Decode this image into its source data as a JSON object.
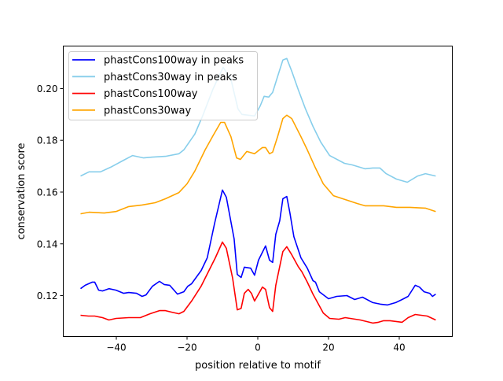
{
  "chart_data": {
    "type": "line",
    "title": "",
    "xlabel": "position relative to motif",
    "ylabel": "conservation score",
    "xlim": [
      -55,
      55
    ],
    "ylim": [
      0.1042,
      0.2164
    ],
    "xticks": [
      -40,
      -20,
      0,
      20,
      40
    ],
    "xtick_labels": [
      "−40",
      "−20",
      "0",
      "20",
      "40"
    ],
    "yticks": [
      0.12,
      0.14,
      0.16,
      0.18,
      0.2
    ],
    "ytick_labels": [
      "0.12",
      "0.14",
      "0.16",
      "0.18",
      "0.20"
    ],
    "grid": false,
    "legend_position": "top-left",
    "series": [
      {
        "name": "phastCons100way in peaks",
        "color": "#0000ff",
        "points": [
          [
            -50.1,
            0.1227
          ],
          [
            -48.8,
            0.124
          ],
          [
            -46.8,
            0.1252
          ],
          [
            -46.1,
            0.1252
          ],
          [
            -45.0,
            0.1221
          ],
          [
            -43.9,
            0.1218
          ],
          [
            -42.1,
            0.1227
          ],
          [
            -40.1,
            0.1221
          ],
          [
            -37.9,
            0.1209
          ],
          [
            -36.5,
            0.1212
          ],
          [
            -34.3,
            0.1209
          ],
          [
            -32.7,
            0.1197
          ],
          [
            -31.6,
            0.1203
          ],
          [
            -29.8,
            0.1236
          ],
          [
            -27.8,
            0.1255
          ],
          [
            -26.5,
            0.1243
          ],
          [
            -24.9,
            0.124
          ],
          [
            -22.7,
            0.1206
          ],
          [
            -20.9,
            0.1215
          ],
          [
            -19.8,
            0.1236
          ],
          [
            -18.7,
            0.1246
          ],
          [
            -16.0,
            0.1297
          ],
          [
            -14.3,
            0.1346
          ],
          [
            -12.2,
            0.148
          ],
          [
            -10.9,
            0.1556
          ],
          [
            -10.0,
            0.1608
          ],
          [
            -8.9,
            0.158
          ],
          [
            -6.7,
            0.1419
          ],
          [
            -5.8,
            0.1282
          ],
          [
            -4.7,
            0.127
          ],
          [
            -3.8,
            0.131
          ],
          [
            -2.0,
            0.1306
          ],
          [
            -0.9,
            0.1279
          ],
          [
            0.2,
            0.1337
          ],
          [
            2.2,
            0.1392
          ],
          [
            3.3,
            0.1337
          ],
          [
            4.2,
            0.1328
          ],
          [
            5.1,
            0.1437
          ],
          [
            6.2,
            0.1489
          ],
          [
            7.1,
            0.1574
          ],
          [
            8.2,
            0.1583
          ],
          [
            9.1,
            0.1519
          ],
          [
            10.2,
            0.1428
          ],
          [
            12.2,
            0.1346
          ],
          [
            14.0,
            0.1306
          ],
          [
            15.6,
            0.1258
          ],
          [
            16.3,
            0.1252
          ],
          [
            17.4,
            0.1215
          ],
          [
            20.0,
            0.1188
          ],
          [
            22.3,
            0.1197
          ],
          [
            25.2,
            0.12
          ],
          [
            27.4,
            0.1185
          ],
          [
            29.6,
            0.1194
          ],
          [
            32.5,
            0.1173
          ],
          [
            34.7,
            0.1167
          ],
          [
            36.7,
            0.1164
          ],
          [
            39.0,
            0.1173
          ],
          [
            40.8,
            0.1185
          ],
          [
            42.5,
            0.1197
          ],
          [
            44.5,
            0.124
          ],
          [
            45.7,
            0.1233
          ],
          [
            47.0,
            0.1215
          ],
          [
            48.6,
            0.1209
          ],
          [
            49.4,
            0.1197
          ],
          [
            50.3,
            0.1206
          ]
        ]
      },
      {
        "name": "phastCons30way in peaks",
        "color": "#87ceeb",
        "points": [
          [
            -50.1,
            0.1662
          ],
          [
            -47.7,
            0.1678
          ],
          [
            -44.5,
            0.1678
          ],
          [
            -41.6,
            0.1696
          ],
          [
            -37.9,
            0.1723
          ],
          [
            -35.4,
            0.1741
          ],
          [
            -32.3,
            0.1732
          ],
          [
            -29.8,
            0.1735
          ],
          [
            -26.1,
            0.1738
          ],
          [
            -22.3,
            0.1748
          ],
          [
            -20.9,
            0.1763
          ],
          [
            -17.8,
            0.1824
          ],
          [
            -15.6,
            0.1894
          ],
          [
            -12.7,
            0.1997
          ],
          [
            -9.8,
            0.2082
          ],
          [
            -7.6,
            0.2036
          ],
          [
            -5.6,
            0.1921
          ],
          [
            -4.5,
            0.19
          ],
          [
            -0.9,
            0.1894
          ],
          [
            0.7,
            0.1933
          ],
          [
            1.8,
            0.197
          ],
          [
            3.1,
            0.1967
          ],
          [
            4.2,
            0.1985
          ],
          [
            5.6,
            0.2046
          ],
          [
            7.1,
            0.211
          ],
          [
            8.2,
            0.2116
          ],
          [
            9.6,
            0.2067
          ],
          [
            11.4,
            0.1997
          ],
          [
            13.4,
            0.1924
          ],
          [
            15.6,
            0.1854
          ],
          [
            17.8,
            0.1793
          ],
          [
            20.3,
            0.1741
          ],
          [
            24.5,
            0.1711
          ],
          [
            26.7,
            0.1705
          ],
          [
            30.3,
            0.169
          ],
          [
            32.5,
            0.1693
          ],
          [
            34.5,
            0.1693
          ],
          [
            36.3,
            0.1671
          ],
          [
            39.2,
            0.165
          ],
          [
            42.3,
            0.1638
          ],
          [
            45.2,
            0.1662
          ],
          [
            47.4,
            0.1671
          ],
          [
            50.3,
            0.1662
          ]
        ]
      },
      {
        "name": "phastCons100way",
        "color": "#ff0000",
        "points": [
          [
            -50.1,
            0.1124
          ],
          [
            -47.9,
            0.1121
          ],
          [
            -46.1,
            0.1121
          ],
          [
            -43.9,
            0.1115
          ],
          [
            -42.1,
            0.1106
          ],
          [
            -40.1,
            0.1112
          ],
          [
            -36.5,
            0.1115
          ],
          [
            -33.2,
            0.1115
          ],
          [
            -30.5,
            0.113
          ],
          [
            -27.8,
            0.1142
          ],
          [
            -26.1,
            0.1142
          ],
          [
            -24.3,
            0.1136
          ],
          [
            -22.3,
            0.113
          ],
          [
            -20.9,
            0.1139
          ],
          [
            -18.7,
            0.1179
          ],
          [
            -16.0,
            0.1237
          ],
          [
            -13.8,
            0.1297
          ],
          [
            -12.0,
            0.1346
          ],
          [
            -10.0,
            0.1407
          ],
          [
            -8.9,
            0.1383
          ],
          [
            -7.1,
            0.1267
          ],
          [
            -5.8,
            0.1145
          ],
          [
            -4.7,
            0.1151
          ],
          [
            -3.8,
            0.1209
          ],
          [
            -2.7,
            0.1224
          ],
          [
            -1.8,
            0.1209
          ],
          [
            -0.9,
            0.1179
          ],
          [
            1.3,
            0.1233
          ],
          [
            2.2,
            0.1224
          ],
          [
            3.3,
            0.1154
          ],
          [
            4.2,
            0.1139
          ],
          [
            5.1,
            0.124
          ],
          [
            7.1,
            0.137
          ],
          [
            8.2,
            0.1389
          ],
          [
            9.6,
            0.1358
          ],
          [
            11.4,
            0.1313
          ],
          [
            12.5,
            0.1291
          ],
          [
            14.0,
            0.1252
          ],
          [
            15.6,
            0.1206
          ],
          [
            18.5,
            0.1133
          ],
          [
            20.3,
            0.1112
          ],
          [
            22.9,
            0.1109
          ],
          [
            24.7,
            0.1115
          ],
          [
            29.0,
            0.1106
          ],
          [
            30.7,
            0.11
          ],
          [
            32.5,
            0.1094
          ],
          [
            34.1,
            0.1097
          ],
          [
            35.6,
            0.1103
          ],
          [
            37.4,
            0.1103
          ],
          [
            40.8,
            0.1097
          ],
          [
            42.5,
            0.1115
          ],
          [
            44.5,
            0.1127
          ],
          [
            47.9,
            0.1121
          ],
          [
            50.3,
            0.1106
          ]
        ]
      },
      {
        "name": "phastCons30way",
        "color": "#ffa500",
        "points": [
          [
            -50.1,
            0.1516
          ],
          [
            -47.7,
            0.1522
          ],
          [
            -43.4,
            0.1519
          ],
          [
            -40.1,
            0.1525
          ],
          [
            -36.5,
            0.1544
          ],
          [
            -32.7,
            0.155
          ],
          [
            -29.0,
            0.1559
          ],
          [
            -26.1,
            0.1574
          ],
          [
            -22.3,
            0.1598
          ],
          [
            -20.0,
            0.1632
          ],
          [
            -17.8,
            0.1681
          ],
          [
            -14.9,
            0.1763
          ],
          [
            -12.7,
            0.1817
          ],
          [
            -10.5,
            0.1869
          ],
          [
            -9.4,
            0.1869
          ],
          [
            -7.6,
            0.1814
          ],
          [
            -6.0,
            0.1732
          ],
          [
            -4.9,
            0.1726
          ],
          [
            -3.1,
            0.1757
          ],
          [
            -0.9,
            0.1748
          ],
          [
            1.3,
            0.1772
          ],
          [
            2.2,
            0.1772
          ],
          [
            3.3,
            0.1748
          ],
          [
            4.2,
            0.1754
          ],
          [
            5.6,
            0.1814
          ],
          [
            7.1,
            0.1884
          ],
          [
            8.2,
            0.1897
          ],
          [
            9.6,
            0.1884
          ],
          [
            12.2,
            0.1814
          ],
          [
            14.0,
            0.1763
          ],
          [
            16.3,
            0.1693
          ],
          [
            18.5,
            0.1632
          ],
          [
            21.4,
            0.1586
          ],
          [
            24.7,
            0.1571
          ],
          [
            28.1,
            0.1556
          ],
          [
            30.3,
            0.1547
          ],
          [
            35.6,
            0.1547
          ],
          [
            39.2,
            0.1541
          ],
          [
            43.0,
            0.1541
          ],
          [
            47.4,
            0.1538
          ],
          [
            50.3,
            0.1525
          ]
        ]
      }
    ]
  }
}
